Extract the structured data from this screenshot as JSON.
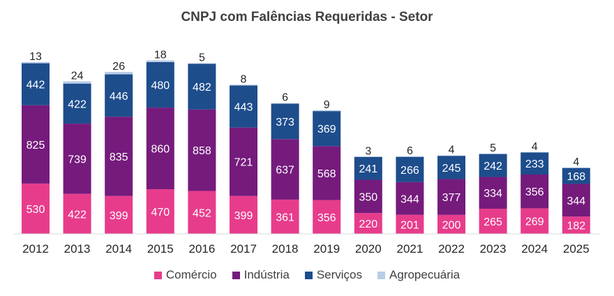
{
  "chart_data": {
    "type": "bar",
    "stacked": true,
    "title": "CNPJ com Falências Requeridas - Setor",
    "categories": [
      "2012",
      "2013",
      "2014",
      "2015",
      "2016",
      "2017",
      "2018",
      "2019",
      "2020",
      "2021",
      "2022",
      "2023",
      "2024",
      "2025"
    ],
    "series": [
      {
        "name": "Comércio",
        "color": "#E73C8C",
        "values": [
          530,
          422,
          399,
          470,
          452,
          399,
          361,
          356,
          220,
          201,
          200,
          265,
          269,
          182
        ]
      },
      {
        "name": "Indústria",
        "color": "#751B7C",
        "values": [
          825,
          739,
          835,
          860,
          858,
          721,
          637,
          568,
          350,
          344,
          377,
          334,
          356,
          344
        ]
      },
      {
        "name": "Serviços",
        "color": "#1E4D8C",
        "values": [
          442,
          422,
          446,
          480,
          482,
          443,
          373,
          369,
          241,
          266,
          245,
          242,
          233,
          168
        ]
      },
      {
        "name": "Agropecuária",
        "color": "#B8CCE8",
        "values": [
          13,
          24,
          26,
          18,
          5,
          8,
          6,
          9,
          3,
          6,
          4,
          5,
          4,
          4
        ]
      }
    ],
    "legend_position": "bottom",
    "grid": false
  }
}
